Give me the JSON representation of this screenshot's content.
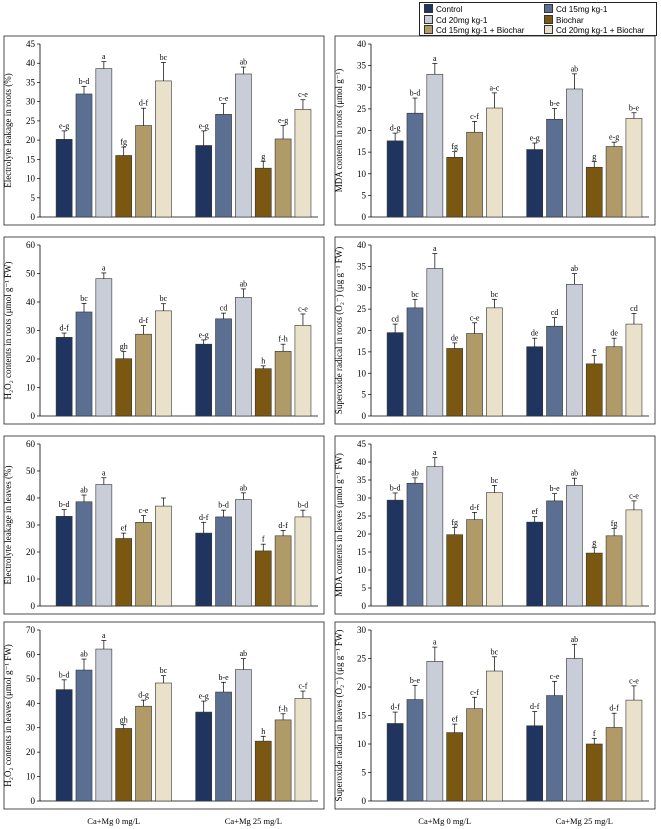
{
  "legend": [
    {
      "label": "Control",
      "color": "#1f3560"
    },
    {
      "label": "Cd 15mg kg-1",
      "color": "#5b6f93"
    },
    {
      "label": "Cd 20mg kg-1",
      "color": "#c9cdd8"
    },
    {
      "label": "Biochar",
      "color": "#7a5812"
    },
    {
      "label": "Cd 15mg kg-1 + Biochar",
      "color": "#b09a68"
    },
    {
      "label": "Cd 20mg kg-1 + Biochar",
      "color": "#e9e1c9"
    }
  ],
  "x_groups": [
    "Ca+Mg 0 mg/L",
    "Ca+Mg 25 mg/L"
  ],
  "chart_data": [
    {
      "id": "el-roots",
      "type": "bar",
      "ylabel": "Electrolyte leakage in roots (%)",
      "ylim": [
        0,
        45
      ],
      "ticks": [
        0,
        5,
        10,
        15,
        20,
        25,
        30,
        35,
        40,
        45
      ],
      "categories": [
        "Ca+Mg 0 mg/L",
        "Ca+Mg 25 mg/L"
      ],
      "values": [
        [
          20.2,
          32.0,
          38.6,
          16.0,
          23.8,
          35.4
        ],
        [
          18.6,
          26.7,
          37.2,
          12.7,
          20.3,
          28.0
        ]
      ],
      "errors": [
        [
          2.2,
          2.0,
          1.8,
          2.2,
          4.5,
          4.8
        ],
        [
          3.8,
          2.8,
          1.8,
          1.8,
          3.5,
          2.5
        ]
      ],
      "letters": [
        [
          "e-g",
          "b-d",
          "a",
          "fg",
          "d-f",
          "bc"
        ],
        [
          "e-g",
          "c-e",
          "ab",
          "g",
          "e-g",
          "c-e"
        ]
      ]
    },
    {
      "id": "mda-roots",
      "type": "bar",
      "ylabel": "MDA contents in roots (μmol g⁻¹)",
      "ylim": [
        0,
        40
      ],
      "ticks": [
        0,
        5,
        10,
        15,
        20,
        25,
        30,
        35,
        40
      ],
      "categories": [
        "Ca+Mg 0 mg/L",
        "Ca+Mg 25 mg/L"
      ],
      "values": [
        [
          17.6,
          24.0,
          33.0,
          13.8,
          19.6,
          25.2
        ],
        [
          15.6,
          22.6,
          29.6,
          11.5,
          16.3,
          22.8
        ]
      ],
      "errors": [
        [
          1.8,
          3.5,
          2.5,
          1.3,
          2.5,
          3.5
        ],
        [
          1.5,
          2.5,
          3.5,
          1.3,
          1.0,
          1.3
        ]
      ],
      "letters": [
        [
          "d-g",
          "b-d",
          "a",
          "fg",
          "c-f",
          "a-c"
        ],
        [
          "e-g",
          "b-e",
          "ab",
          "g",
          "e-g",
          "b-e"
        ]
      ]
    },
    {
      "id": "h2o2-roots",
      "type": "bar",
      "ylabel": "H₂O₂ contents in roots (μmol g⁻¹ FW)",
      "ylim": [
        0,
        60
      ],
      "ticks": [
        0,
        10,
        20,
        30,
        40,
        50,
        60
      ],
      "categories": [
        "Ca+Mg 0 mg/L",
        "Ca+Mg 25 mg/L"
      ],
      "values": [
        [
          27.6,
          36.5,
          48.2,
          20.1,
          28.7,
          36.9
        ],
        [
          25.2,
          34.1,
          41.6,
          16.6,
          22.7,
          31.8
        ]
      ],
      "errors": [
        [
          1.5,
          3.0,
          2.0,
          2.5,
          3.0,
          2.5
        ],
        [
          1.5,
          2.0,
          3.0,
          1.0,
          2.5,
          4.0
        ]
      ],
      "letters": [
        [
          "d-f",
          "bc",
          "a",
          "gh",
          "d-f",
          "bc"
        ],
        [
          "e-g",
          "cd",
          "ab",
          "h",
          "f-h",
          "c-e"
        ]
      ]
    },
    {
      "id": "o2-roots",
      "type": "bar",
      "ylabel": "Superoxide radical in roots (O₂⁻) (μg g⁻¹ FW)",
      "ylim": [
        0,
        40
      ],
      "ticks": [
        0,
        5,
        10,
        15,
        20,
        25,
        30,
        35,
        40
      ],
      "categories": [
        "Ca+Mg 0 mg/L",
        "Ca+Mg 25 mg/L"
      ],
      "values": [
        [
          19.5,
          25.3,
          34.5,
          15.8,
          19.3,
          25.3
        ],
        [
          16.2,
          21.0,
          30.8,
          12.2,
          16.2,
          21.5
        ]
      ],
      "errors": [
        [
          2.0,
          2.0,
          3.5,
          1.3,
          2.5,
          2.0
        ],
        [
          2.0,
          2.0,
          2.5,
          2.0,
          2.0,
          2.5
        ]
      ],
      "letters": [
        [
          "cd",
          "bc",
          "a",
          "de",
          "c-e",
          "bc"
        ],
        [
          "de",
          "cd",
          "ab",
          "e",
          "de",
          "cd"
        ]
      ]
    },
    {
      "id": "el-leaves",
      "type": "bar",
      "ylabel": "Electrolyte leakage in leaves (%)",
      "ylim": [
        0,
        60
      ],
      "ticks": [
        0,
        10,
        20,
        30,
        40,
        50,
        60
      ],
      "categories": [
        "Ca+Mg 0 mg/L",
        "Ca+Mg 25 mg/L"
      ],
      "values": [
        [
          33.2,
          38.6,
          45.0,
          25.0,
          31.0,
          37.0
        ],
        [
          27.0,
          33.0,
          39.4,
          20.4,
          26.0,
          33.0
        ]
      ],
      "errors": [
        [
          2.5,
          2.5,
          2.5,
          2.0,
          2.5,
          3.0
        ],
        [
          4.0,
          2.5,
          2.5,
          2.5,
          2.0,
          2.5
        ]
      ],
      "letters": [
        [
          "b-d",
          "ab",
          "a",
          "ef",
          "c-e",
          ""
        ],
        [
          "d-f",
          "b-d",
          "ab",
          "f",
          "d-f",
          "b-d"
        ]
      ]
    },
    {
      "id": "mda-leaves",
      "type": "bar",
      "ylabel": "MDA contents in leaves (μmol g⁻¹ FW)",
      "ylim": [
        0,
        45
      ],
      "ticks": [
        0,
        5,
        10,
        15,
        20,
        25,
        30,
        35,
        40,
        45
      ],
      "categories": [
        "Ca+Mg 0 mg/L",
        "Ca+Mg 25 mg/L"
      ],
      "values": [
        [
          29.4,
          34.1,
          38.7,
          19.8,
          24.0,
          31.5
        ],
        [
          23.3,
          29.2,
          33.5,
          14.7,
          19.5,
          26.7
        ]
      ],
      "errors": [
        [
          2.0,
          1.5,
          2.5,
          2.0,
          2.0,
          2.0
        ],
        [
          1.5,
          2.0,
          2.0,
          1.5,
          2.0,
          2.5
        ]
      ],
      "letters": [
        [
          "b-d",
          "ab",
          "a",
          "fg",
          "d-f",
          "bc"
        ],
        [
          "ef",
          "b-e",
          "ab",
          "g",
          "fg",
          "c-e"
        ]
      ]
    },
    {
      "id": "h2o2-leaves",
      "type": "bar",
      "ylabel": "H₂O₂ contents in leaves (μmol g⁻¹ FW)",
      "ylim": [
        0,
        70
      ],
      "ticks": [
        0,
        10,
        20,
        30,
        40,
        50,
        60,
        70
      ],
      "categories": [
        "Ca+Mg 0 mg/L",
        "Ca+Mg 25 mg/L"
      ],
      "values": [
        [
          45.6,
          53.6,
          62.2,
          29.7,
          38.8,
          48.3
        ],
        [
          36.4,
          44.6,
          53.8,
          24.5,
          33.2,
          42.0
        ]
      ],
      "errors": [
        [
          4.0,
          4.5,
          3.5,
          1.5,
          2.5,
          3.0
        ],
        [
          4.5,
          4.0,
          4.5,
          2.0,
          2.5,
          3.0
        ]
      ],
      "letters": [
        [
          "b-d",
          "ab",
          "a",
          "gh",
          "d-g",
          "bc"
        ],
        [
          "e-g",
          "b-e",
          "ab",
          "h",
          "f-h",
          "c-f"
        ]
      ]
    },
    {
      "id": "o2-leaves",
      "type": "bar",
      "ylabel": "Superoxide radical in leaves (O₂⁻) (μg g⁻¹ FW)",
      "ylim": [
        0,
        30
      ],
      "ticks": [
        0,
        5,
        10,
        15,
        20,
        25,
        30
      ],
      "categories": [
        "Ca+Mg 0 mg/L",
        "Ca+Mg 25 mg/L"
      ],
      "values": [
        [
          13.6,
          17.8,
          24.5,
          12.0,
          16.2,
          22.8
        ],
        [
          13.2,
          18.5,
          25.0,
          10.0,
          12.9,
          17.7
        ]
      ],
      "errors": [
        [
          2.0,
          2.5,
          2.5,
          1.5,
          2.0,
          2.5
        ],
        [
          2.5,
          2.5,
          2.5,
          1.0,
          2.5,
          2.5
        ]
      ],
      "letters": [
        [
          "d-f",
          "b-e",
          "a",
          "ef",
          "c-f",
          "bc"
        ],
        [
          "d-f",
          "c-e",
          "ab",
          "f",
          "d-f",
          "c-e"
        ]
      ]
    }
  ]
}
